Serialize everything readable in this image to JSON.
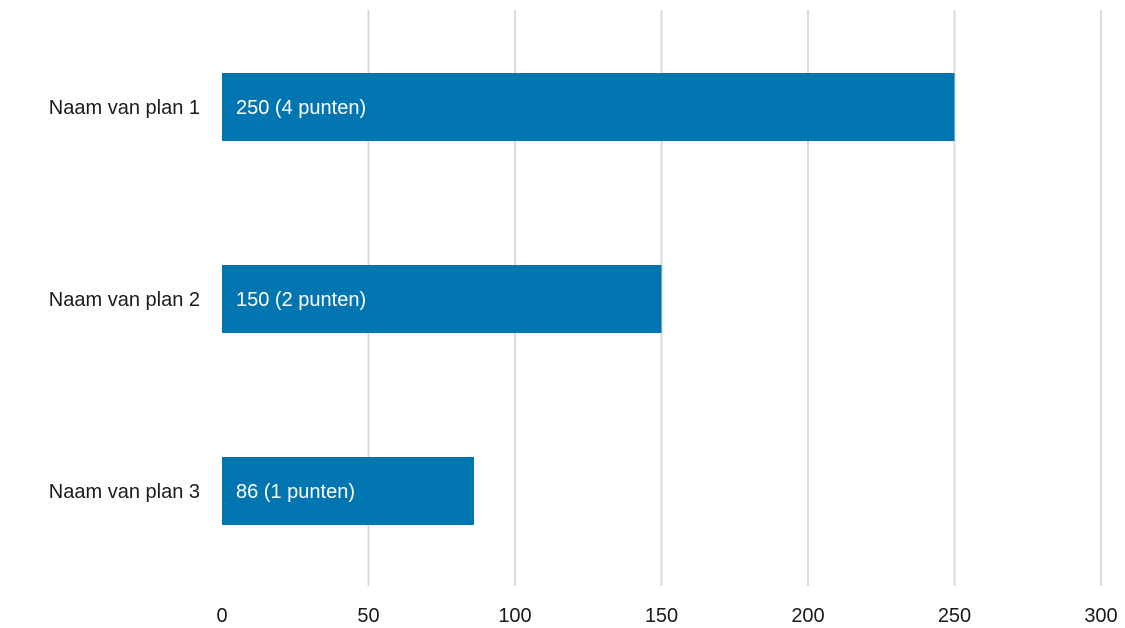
{
  "chart_data": {
    "type": "bar",
    "orientation": "horizontal",
    "title": "",
    "xlabel": "",
    "ylabel": "",
    "categories": [
      "Naam van plan 1",
      "Naam van plan 2",
      "Naam van plan 3"
    ],
    "values": [
      250,
      150,
      86
    ],
    "data_labels": [
      "250 (4 punten)",
      "150 (2 punten)",
      "86 (1 punten)"
    ],
    "xlim": [
      0,
      300
    ],
    "xticks": [
      0,
      50,
      100,
      150,
      200,
      250,
      300
    ],
    "xtick_labels": [
      "0",
      "50",
      "100",
      "150",
      "200",
      "250",
      "300"
    ],
    "grid": "vertical",
    "legend": "none",
    "bar_color": "#0075B0",
    "grid_color": "#D9D9D9"
  }
}
